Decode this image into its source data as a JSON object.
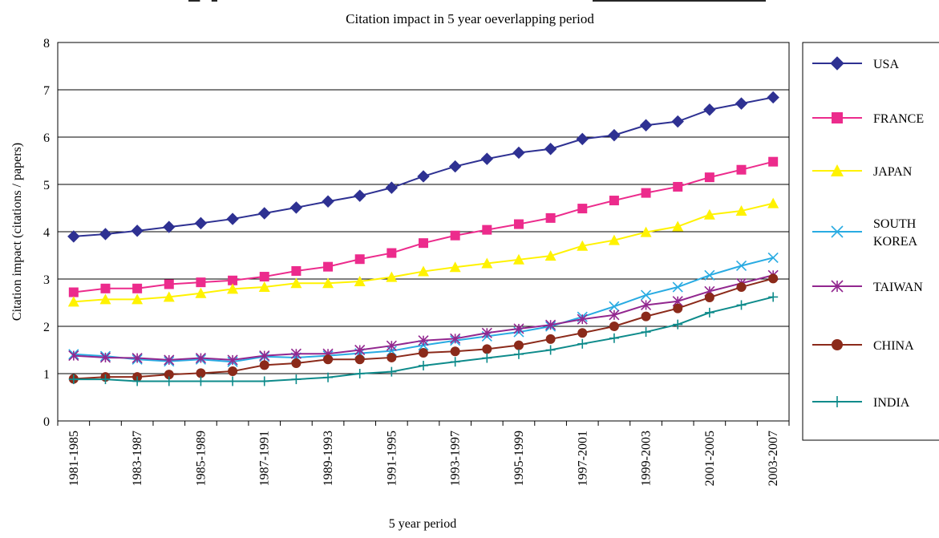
{
  "chart_data": {
    "type": "line",
    "title": "",
    "subtitle": "Citation impact in 5 year oeverlapping period",
    "xlabel": "5 year period",
    "ylabel": "Citation impact (citations / papers)",
    "ylim": [
      0,
      8
    ],
    "yticks": [
      0,
      1,
      2,
      3,
      4,
      5,
      6,
      7,
      8
    ],
    "grid": true,
    "legend_position": "right",
    "categories": [
      "1981-1985",
      "1982-1986",
      "1983-1987",
      "1984-1988",
      "1985-1989",
      "1986-1990",
      "1987-1991",
      "1988-1992",
      "1989-1993",
      "1990-1994",
      "1991-1995",
      "1992-1996",
      "1993-1997",
      "1994-1998",
      "1995-1999",
      "1996-2000",
      "1997-2001",
      "1998-2002",
      "1999-2003",
      "2000-2004",
      "2001-2005",
      "2002-2006",
      "2003-2007"
    ],
    "tick_labels": [
      "1981-1985",
      "1983-1987",
      "1985-1989",
      "1987-1991",
      "1989-1993",
      "1991-1995",
      "1993-1997",
      "1995-1999",
      "1997-2001",
      "1999-2003",
      "2001-2005",
      "2003-2007"
    ],
    "series": [
      {
        "name": "USA",
        "color": "#2e3192",
        "marker": "diamond",
        "legend_lines": [
          "USA"
        ],
        "values": [
          3.9,
          3.95,
          4.02,
          4.1,
          4.18,
          4.27,
          4.39,
          4.51,
          4.64,
          4.76,
          4.93,
          5.17,
          5.38,
          5.54,
          5.67,
          5.75,
          5.96,
          6.04,
          6.25,
          6.33,
          6.58,
          6.71,
          6.84
        ]
      },
      {
        "name": "FRANCE",
        "color": "#ec2b8c",
        "marker": "square",
        "legend_lines": [
          "FRANCE"
        ],
        "values": [
          2.72,
          2.8,
          2.8,
          2.89,
          2.93,
          2.97,
          3.05,
          3.17,
          3.26,
          3.42,
          3.55,
          3.76,
          3.92,
          4.04,
          4.16,
          4.29,
          4.49,
          4.66,
          4.82,
          4.95,
          5.15,
          5.31,
          5.48
        ]
      },
      {
        "name": "JAPAN",
        "color": "#fff200",
        "marker": "triangle",
        "legend_lines": [
          "JAPAN"
        ],
        "values": [
          2.52,
          2.57,
          2.57,
          2.62,
          2.7,
          2.79,
          2.83,
          2.91,
          2.91,
          2.95,
          3.04,
          3.16,
          3.25,
          3.33,
          3.41,
          3.49,
          3.7,
          3.82,
          3.99,
          4.11,
          4.36,
          4.44,
          4.6
        ]
      },
      {
        "name": "SOUTH KOREA",
        "color": "#29abe2",
        "marker": "x",
        "legend_lines": [
          "SOUTH",
          "KOREA"
        ],
        "values": [
          1.41,
          1.37,
          1.3,
          1.26,
          1.3,
          1.25,
          1.36,
          1.34,
          1.38,
          1.43,
          1.48,
          1.6,
          1.7,
          1.79,
          1.88,
          2.0,
          2.2,
          2.42,
          2.66,
          2.83,
          3.08,
          3.28,
          3.45
        ]
      },
      {
        "name": "TAIWAN",
        "color": "#92278f",
        "marker": "asterisk",
        "legend_lines": [
          "TAIWAN"
        ],
        "values": [
          1.38,
          1.34,
          1.33,
          1.29,
          1.33,
          1.29,
          1.38,
          1.42,
          1.42,
          1.5,
          1.59,
          1.7,
          1.74,
          1.86,
          1.95,
          2.03,
          2.15,
          2.24,
          2.45,
          2.53,
          2.74,
          2.91,
          3.08
        ]
      },
      {
        "name": "CHINA",
        "color": "#8b2a1a",
        "marker": "circle",
        "legend_lines": [
          "CHINA"
        ],
        "values": [
          0.89,
          0.93,
          0.93,
          0.98,
          1.01,
          1.05,
          1.18,
          1.22,
          1.3,
          1.3,
          1.34,
          1.44,
          1.47,
          1.52,
          1.6,
          1.73,
          1.86,
          2.0,
          2.21,
          2.38,
          2.61,
          2.83,
          3.01
        ]
      },
      {
        "name": "INDIA",
        "color": "#0e8b8b",
        "marker": "plus",
        "legend_lines": [
          "INDIA"
        ],
        "values": [
          0.88,
          0.88,
          0.84,
          0.84,
          0.84,
          0.84,
          0.84,
          0.88,
          0.92,
          1.0,
          1.04,
          1.17,
          1.25,
          1.33,
          1.41,
          1.5,
          1.63,
          1.75,
          1.88,
          2.04,
          2.29,
          2.45,
          2.62
        ]
      }
    ]
  }
}
